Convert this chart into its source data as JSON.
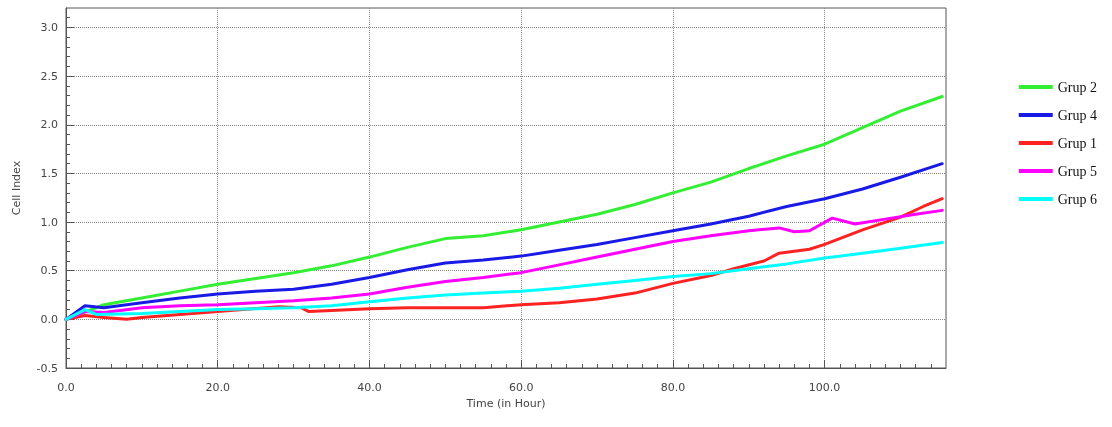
{
  "chart_data": {
    "type": "line",
    "xlabel": "Time (in Hour)",
    "ylabel": "Cell Index",
    "xlim": [
      0,
      116
    ],
    "ylim": [
      -0.5,
      3.2
    ],
    "xticks": [
      {
        "value": 0,
        "label": "0.0"
      },
      {
        "value": 20,
        "label": "20.0"
      },
      {
        "value": 40,
        "label": "40.0"
      },
      {
        "value": 60,
        "label": "60.0"
      },
      {
        "value": 80,
        "label": "80.0"
      },
      {
        "value": 100,
        "label": "100.0"
      }
    ],
    "yticks": [
      {
        "value": -0.5,
        "label": "-0.5"
      },
      {
        "value": 0,
        "label": "0.0"
      },
      {
        "value": 0.5,
        "label": "0.5"
      },
      {
        "value": 1,
        "label": "1.0"
      },
      {
        "value": 1.5,
        "label": "1.5"
      },
      {
        "value": 2,
        "label": "2.0"
      },
      {
        "value": 2.5,
        "label": "2.5"
      },
      {
        "value": 3,
        "label": "3.0"
      }
    ],
    "grid": true,
    "legend": "right",
    "marker": "none",
    "line_style": "solid",
    "series": [
      {
        "name": "Grup 2",
        "color": "#33ee33",
        "x": [
          0,
          5,
          10,
          15,
          20,
          25,
          30,
          35,
          40,
          45,
          50,
          55,
          60,
          65,
          70,
          75,
          80,
          85,
          90,
          95,
          100,
          105,
          110,
          115.5
        ],
        "values": [
          0,
          0.15,
          0.22,
          0.29,
          0.36,
          0.42,
          0.48,
          0.55,
          0.64,
          0.74,
          0.83,
          0.86,
          0.92,
          1.0,
          1.08,
          1.18,
          1.3,
          1.41,
          1.55,
          1.68,
          1.8,
          1.97,
          2.14,
          2.29
        ]
      },
      {
        "name": "Grup 4",
        "color": "#1a1ae6",
        "x": [
          0,
          2.5,
          5,
          10,
          15,
          20,
          25,
          30,
          35,
          40,
          45,
          50,
          55,
          60,
          65,
          70,
          75,
          80,
          85,
          90,
          95,
          100,
          105,
          110,
          115.5
        ],
        "values": [
          0,
          0.14,
          0.12,
          0.17,
          0.22,
          0.26,
          0.29,
          0.31,
          0.36,
          0.43,
          0.51,
          0.58,
          0.61,
          0.65,
          0.71,
          0.77,
          0.84,
          0.91,
          0.98,
          1.06,
          1.16,
          1.24,
          1.34,
          1.46,
          1.6
        ]
      },
      {
        "name": "Grup 1",
        "color": "#ff2222",
        "x": [
          0,
          2.5,
          5,
          8,
          10,
          15,
          20,
          28,
          31,
          32,
          35,
          40,
          45,
          50,
          55,
          60,
          65,
          70,
          75,
          80,
          85,
          88,
          92,
          94,
          96,
          98,
          100,
          105,
          110,
          113,
          115.5
        ],
        "values": [
          0,
          0.04,
          0.02,
          0,
          0.02,
          0.05,
          0.08,
          0.13,
          0.12,
          0.08,
          0.09,
          0.11,
          0.12,
          0.12,
          0.12,
          0.15,
          0.17,
          0.21,
          0.27,
          0.37,
          0.45,
          0.52,
          0.6,
          0.68,
          0.7,
          0.72,
          0.77,
          0.92,
          1.05,
          1.16,
          1.24
        ]
      },
      {
        "name": "Grup 5",
        "color": "#ff00ff",
        "x": [
          0,
          2.5,
          5,
          10,
          15,
          20,
          25,
          30,
          35,
          40,
          45,
          50,
          55,
          60,
          65,
          70,
          75,
          80,
          85,
          90,
          94,
          96,
          98,
          101,
          104,
          108,
          112,
          115.5
        ],
        "values": [
          0,
          0.08,
          0.07,
          0.12,
          0.14,
          0.15,
          0.17,
          0.19,
          0.22,
          0.26,
          0.33,
          0.39,
          0.43,
          0.48,
          0.56,
          0.64,
          0.72,
          0.8,
          0.86,
          0.91,
          0.94,
          0.9,
          0.91,
          1.04,
          0.98,
          1.03,
          1.08,
          1.12
        ]
      },
      {
        "name": "Grup 6",
        "color": "#00ffff",
        "x": [
          0,
          2.5,
          4,
          10,
          15,
          20,
          25,
          30,
          35,
          40,
          45,
          50,
          55,
          60,
          65,
          70,
          75,
          80,
          85,
          90,
          95,
          100,
          105,
          110,
          115.5
        ],
        "values": [
          0,
          0.1,
          0.05,
          0.06,
          0.08,
          0.1,
          0.11,
          0.12,
          0.14,
          0.18,
          0.22,
          0.25,
          0.27,
          0.29,
          0.32,
          0.36,
          0.4,
          0.44,
          0.47,
          0.52,
          0.57,
          0.63,
          0.68,
          0.73,
          0.79
        ]
      }
    ]
  }
}
